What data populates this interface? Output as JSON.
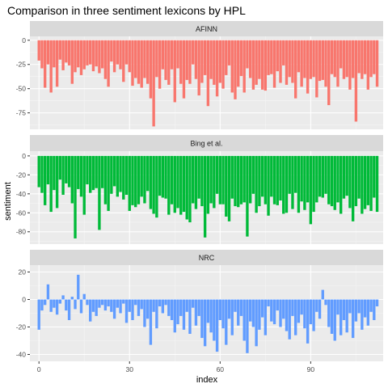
{
  "chart_data": {
    "type": "bar",
    "title": "Comparison in three sentiment lexicons by HPL",
    "xlabel": "index",
    "ylabel": "sentiment",
    "x_ticks": [
      0,
      30,
      60,
      90
    ],
    "x_range": [
      -3,
      114
    ],
    "grid": true,
    "panels": [
      {
        "name": "AFINN",
        "color": "#F8766D",
        "ylim": [
          -92,
          4
        ],
        "y_ticks": [
          0,
          -25,
          -50,
          -75
        ],
        "y_tick_labels": [
          "0",
          "-25",
          "-50",
          "-75"
        ],
        "values": [
          -21,
          -29,
          -49,
          -25,
          -54,
          -28,
          -48,
          -20,
          -31,
          -23,
          -26,
          -45,
          -33,
          -28,
          -36,
          -30,
          -26,
          -25,
          -32,
          -27,
          -34,
          -29,
          -40,
          -48,
          -22,
          -33,
          -25,
          -30,
          -43,
          -25,
          -33,
          -47,
          -39,
          -45,
          -49,
          -39,
          -45,
          -60,
          -89,
          -38,
          -50,
          -30,
          -41,
          -46,
          -30,
          -64,
          -29,
          -45,
          -60,
          -41,
          -45,
          -25,
          -40,
          -57,
          -44,
          -36,
          -68,
          -40,
          -46,
          -58,
          -44,
          -50,
          -36,
          -26,
          -54,
          -61,
          -48,
          -37,
          -54,
          -29,
          -39,
          -51,
          -46,
          -40,
          -51,
          -52,
          -36,
          -35,
          -49,
          -32,
          -44,
          -26,
          -46,
          -38,
          -44,
          -60,
          -33,
          -48,
          -39,
          -55,
          -40,
          -38,
          -59,
          -42,
          -41,
          -48,
          -67,
          -35,
          -38,
          -48,
          -29,
          -40,
          -38,
          -51,
          -39,
          -84,
          -34,
          -40,
          -35,
          -51,
          -38,
          -35,
          -48
        ]
      },
      {
        "name": "Bing et al.",
        "color": "#00BA38",
        "ylim": [
          -93,
          5
        ],
        "y_ticks": [
          0,
          -20,
          -40,
          -60,
          -80
        ],
        "y_tick_labels": [
          "0",
          "-20",
          "-40",
          "-60",
          "-80"
        ],
        "values": [
          -33,
          -39,
          -52,
          -30,
          -59,
          -36,
          -55,
          -25,
          -41,
          -29,
          -33,
          -50,
          -87,
          -35,
          -43,
          -62,
          -30,
          -39,
          -36,
          -34,
          -78,
          -34,
          -51,
          -58,
          -40,
          -32,
          -43,
          -38,
          -46,
          -41,
          -58,
          -52,
          -54,
          -51,
          -43,
          -50,
          -37,
          -56,
          -61,
          -65,
          -42,
          -44,
          -45,
          -62,
          -51,
          -60,
          -55,
          -62,
          -59,
          -67,
          -70,
          -50,
          -56,
          -45,
          -53,
          -86,
          -61,
          -50,
          -55,
          -40,
          -51,
          -51,
          -64,
          -69,
          -45,
          -53,
          -54,
          -51,
          -49,
          -85,
          -50,
          -40,
          -60,
          -53,
          -43,
          -51,
          -63,
          -43,
          -51,
          -52,
          -47,
          -61,
          -60,
          -40,
          -56,
          -39,
          -60,
          -48,
          -57,
          -49,
          -72,
          -59,
          -49,
          -43,
          -44,
          -40,
          -51,
          -53,
          -57,
          -49,
          -61,
          -45,
          -42,
          -55,
          -69,
          -53,
          -45,
          -61,
          -56,
          -52,
          -58,
          -44,
          -59
        ]
      },
      {
        "name": "NRC",
        "color": "#619CFF",
        "ylim": [
          -45,
          25
        ],
        "y_ticks": [
          20,
          0,
          -20,
          -40
        ],
        "y_tick_labels": [
          "20",
          "0",
          "-20",
          "-40"
        ],
        "values": [
          -22,
          -8,
          -4,
          11,
          -9,
          -6,
          -11,
          -3,
          3,
          -8,
          -15,
          2,
          -7,
          18,
          -10,
          4,
          -4,
          -16,
          -9,
          -12,
          -6,
          -4,
          -8,
          -5,
          -9,
          -14,
          -6,
          -10,
          -3,
          -17,
          -9,
          -15,
          -4,
          -12,
          -7,
          -20,
          -14,
          -33,
          -9,
          -21,
          -5,
          -10,
          -4,
          -12,
          -15,
          -24,
          -18,
          -12,
          -22,
          -9,
          -25,
          -6,
          -19,
          -12,
          -28,
          -34,
          -17,
          -24,
          -30,
          -38,
          -15,
          -21,
          -33,
          -14,
          -26,
          -9,
          -19,
          -12,
          -30,
          -39,
          -16,
          -20,
          -34,
          -22,
          -13,
          -26,
          -5,
          -16,
          -18,
          -8,
          -20,
          -14,
          -23,
          -29,
          -12,
          -26,
          -17,
          -11,
          -21,
          -32,
          -18,
          -23,
          -9,
          -14,
          7,
          -4,
          -20,
          -25,
          -30,
          -11,
          -26,
          -15,
          -24,
          -10,
          -28,
          -16,
          -10,
          -22,
          -13,
          -19,
          -9,
          -15,
          -5
        ]
      }
    ]
  }
}
